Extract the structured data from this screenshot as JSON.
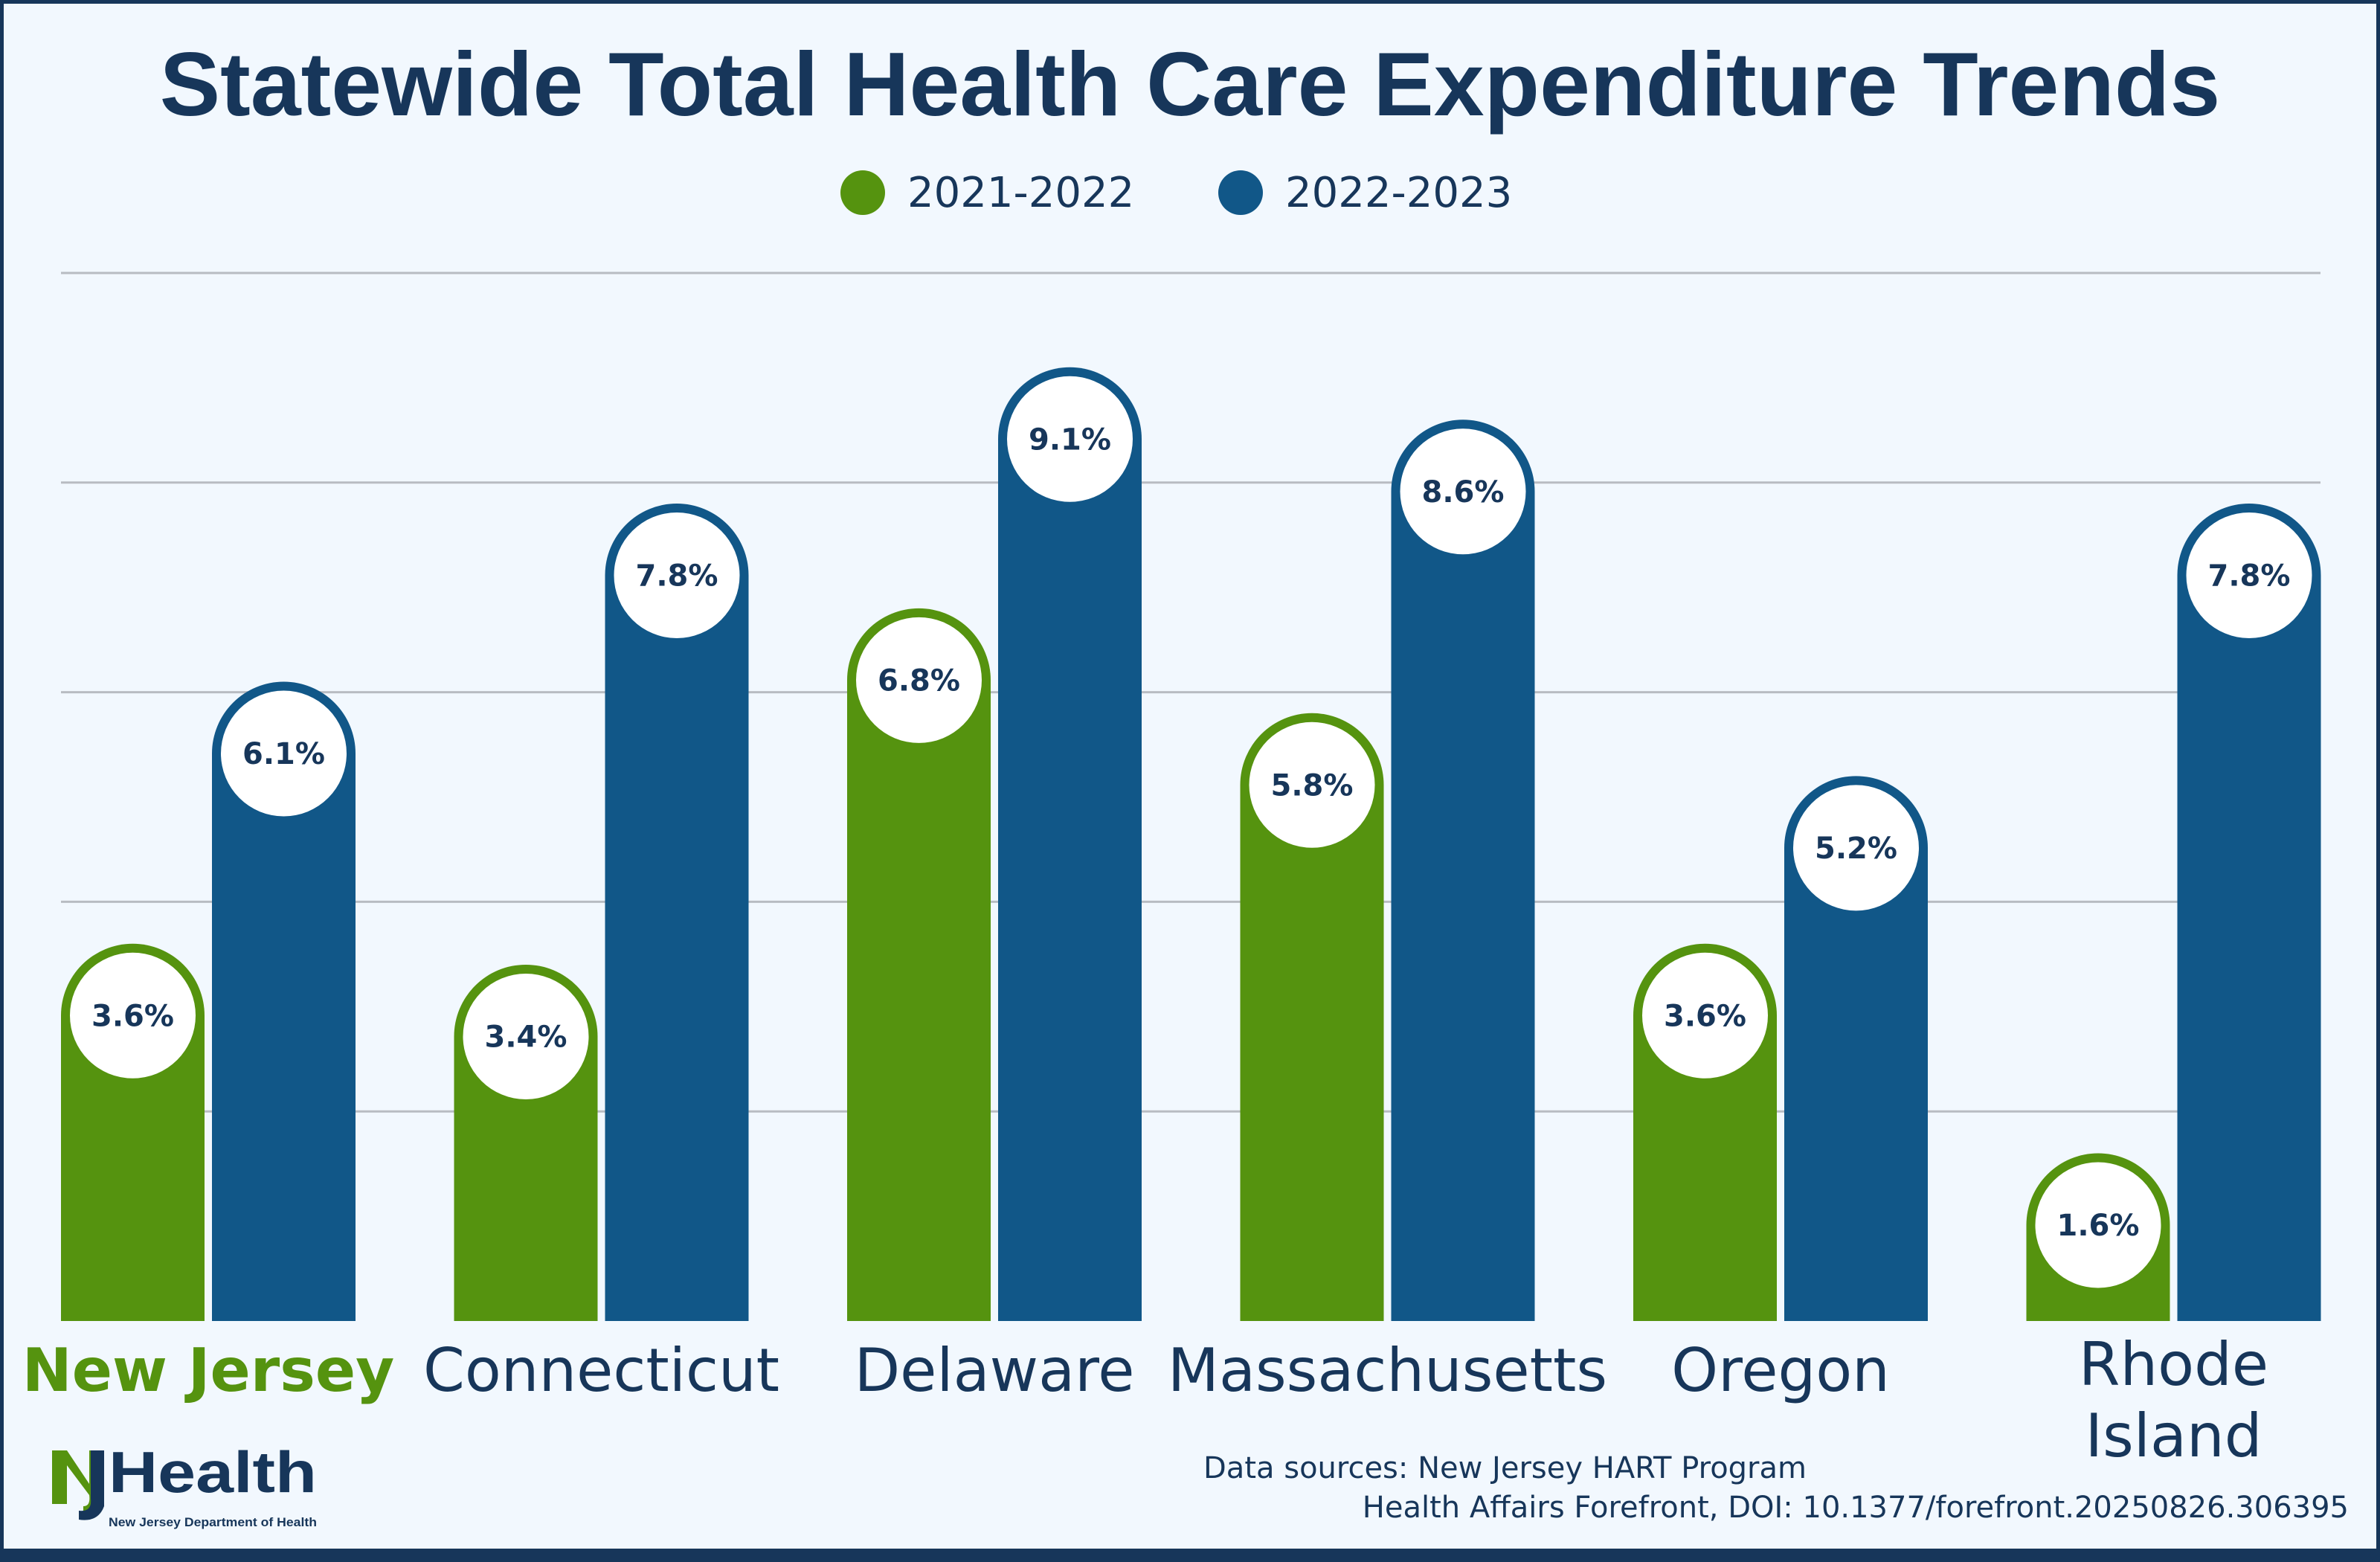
{
  "chart_data": {
    "type": "bar",
    "title": "Statewide Total Health Care Expenditure Trends",
    "categories": [
      "New Jersey",
      "Connecticut",
      "Delaware",
      "Massachusetts",
      "Oregon",
      "Rhode Island"
    ],
    "highlight_category": "New Jersey",
    "series": [
      {
        "name": "2021-2022",
        "values": [
          3.6,
          3.4,
          6.8,
          5.8,
          3.6,
          1.6
        ],
        "color": "#55930f"
      },
      {
        "name": "2022-2023",
        "values": [
          6.1,
          7.8,
          9.1,
          8.6,
          5.2,
          7.8
        ],
        "color": "#115788"
      }
    ],
    "value_format": "%",
    "ylim": [
      0,
      10
    ],
    "gridlines": [
      0,
      2,
      4,
      6,
      8,
      10
    ],
    "grid": true,
    "legend_position": "top-center",
    "xlabel": "",
    "ylabel": ""
  },
  "footer": {
    "source_line1": "Data sources: New Jersey HART Program",
    "source_line2": "Health Affairs Forefront, DOI: 10.1377/forefront.20250826.306395"
  },
  "logo": {
    "text": "NJHealth",
    "subtext": "New Jersey Department of Health"
  },
  "colors": {
    "background": "#f2f8fe",
    "frame": "#17365a",
    "text": "#17365a"
  }
}
